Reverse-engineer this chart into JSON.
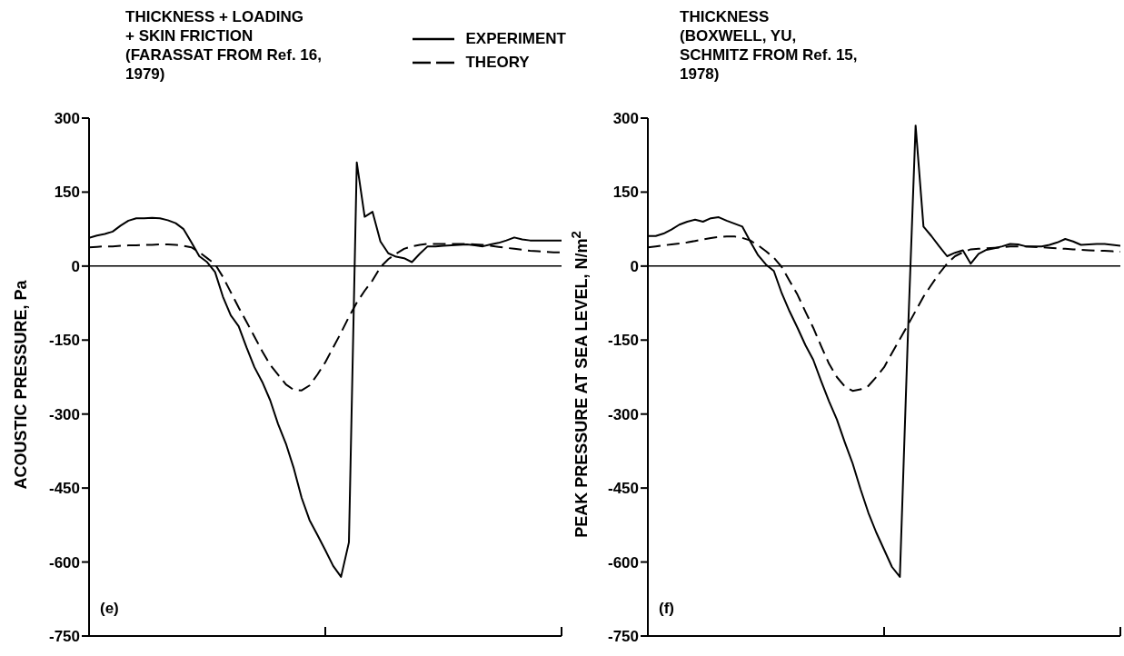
{
  "chart_data": [
    {
      "type": "line",
      "title": "THICKNESS + LOADING\n+ SKIN FRICTION\n(FARASSAT FROM Ref. 16,\n1979)",
      "ylabel": "ACOUSTIC PRESSURE, Pa",
      "annotations": [
        "(e)"
      ],
      "legend": "top right",
      "ylim": [
        -750,
        300
      ],
      "yticks": [
        -750,
        -600,
        -450,
        -300,
        -150,
        0,
        150,
        300
      ],
      "ref_lines": [
        {
          "axis": "y",
          "value": 0,
          "color": "#000000",
          "line_style": "solid"
        }
      ],
      "categories": [
        null,
        null,
        null,
        null,
        null,
        null,
        null,
        null,
        null,
        null,
        null,
        null,
        null,
        null,
        null,
        null,
        null,
        null,
        null,
        null,
        null,
        null,
        null,
        null,
        null,
        null,
        null,
        null,
        null,
        null,
        null,
        null,
        null,
        null,
        null,
        null,
        null,
        null,
        null,
        null,
        null,
        null,
        null,
        null,
        null,
        null,
        null,
        null,
        null,
        null,
        null,
        null,
        null,
        null,
        null,
        null,
        null,
        null,
        null,
        null,
        null
      ],
      "series": [
        {
          "name": "EXPERIMENT",
          "color": "#000000",
          "line_style": "solid",
          "values": [
            57,
            62,
            65,
            70,
            82,
            92,
            97,
            97,
            98,
            97,
            93,
            87,
            75,
            48,
            20,
            8,
            -12,
            -62,
            -100,
            -122,
            -165,
            -205,
            -235,
            -272,
            -320,
            -360,
            -410,
            -470,
            -515,
            -545,
            -576,
            -608,
            -630,
            -560,
            210,
            100,
            110,
            50,
            26,
            19,
            16,
            8,
            25,
            40,
            40,
            41,
            42,
            43,
            44,
            42,
            40,
            44,
            47,
            52,
            58,
            54,
            52,
            52,
            52,
            52,
            52
          ]
        },
        {
          "name": "THEORY",
          "color": "#000000",
          "line_style": "dashed",
          "values": [
            38,
            39,
            40,
            40,
            41,
            42,
            42,
            43,
            43,
            44,
            44,
            43,
            41,
            38,
            28,
            16,
            4,
            -22,
            -53,
            -84,
            -113,
            -143,
            -173,
            -200,
            -220,
            -240,
            -251,
            -252,
            -242,
            -220,
            -195,
            -165,
            -135,
            -103,
            -74,
            -50,
            -29,
            -2,
            14,
            25,
            35,
            40,
            43,
            45,
            45,
            45,
            45,
            45,
            45,
            44,
            43,
            41,
            39,
            37,
            35,
            33,
            31,
            30,
            29,
            28,
            28
          ]
        }
      ]
    },
    {
      "type": "line",
      "title": "THICKNESS\n(BOXWELL, YU,\nSCHMITZ FROM Ref. 15,\n1978)",
      "ylabel": "PEAK PRESSURE AT SEA LEVEL, N/m$^{2}$",
      "annotations": [
        "(f)"
      ],
      "ylim": [
        -750,
        300
      ],
      "yticks": [
        -750,
        -600,
        -450,
        -300,
        -150,
        0,
        150,
        300
      ],
      "ref_lines": [
        {
          "axis": "y",
          "value": 0,
          "color": "#000000",
          "line_style": "solid"
        }
      ],
      "categories": [
        null,
        null,
        null,
        null,
        null,
        null,
        null,
        null,
        null,
        null,
        null,
        null,
        null,
        null,
        null,
        null,
        null,
        null,
        null,
        null,
        null,
        null,
        null,
        null,
        null,
        null,
        null,
        null,
        null,
        null,
        null,
        null,
        null,
        null,
        null,
        null,
        null,
        null,
        null,
        null,
        null,
        null,
        null,
        null,
        null,
        null,
        null,
        null,
        null,
        null,
        null,
        null,
        null,
        null,
        null,
        null,
        null,
        null,
        null,
        null,
        null
      ],
      "series": [
        {
          "color": "#000000",
          "line_style": "solid",
          "values": [
            61,
            61,
            66,
            74,
            84,
            90,
            94,
            90,
            97,
            99,
            92,
            86,
            80,
            50,
            22,
            3,
            -10,
            -55,
            -92,
            -125,
            -160,
            -190,
            -233,
            -274,
            -311,
            -357,
            -400,
            -452,
            -500,
            -540,
            -575,
            -610,
            -630,
            -150,
            285,
            80,
            61,
            40,
            20,
            27,
            32,
            5,
            25,
            33,
            36,
            40,
            45,
            44,
            40,
            40,
            40,
            43,
            48,
            55,
            50,
            43,
            44,
            45,
            45,
            43,
            41
          ]
        },
        {
          "color": "#000000",
          "line_style": "dashed",
          "values": [
            38,
            40,
            42,
            44,
            46,
            48,
            51,
            54,
            57,
            59,
            60,
            60,
            57,
            52,
            42,
            30,
            17,
            -2,
            -30,
            -58,
            -92,
            -125,
            -162,
            -198,
            -225,
            -244,
            -253,
            -250,
            -243,
            -225,
            -205,
            -176,
            -148,
            -120,
            -91,
            -62,
            -38,
            -15,
            5,
            20,
            28,
            34,
            35,
            36,
            37,
            38,
            40,
            40,
            40,
            39,
            38,
            37,
            36,
            35,
            34,
            33,
            32,
            31,
            31,
            30,
            29
          ]
        }
      ]
    }
  ]
}
